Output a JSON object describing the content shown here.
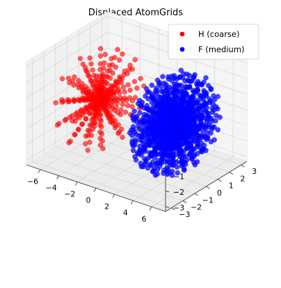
{
  "chart_data": {
    "type": "scatter",
    "projection": "3d",
    "title": "Displaced AtomGrids",
    "xlabel": "",
    "ylabel": "",
    "zlabel": "",
    "xlim": [
      -7.5,
      7.5
    ],
    "ylim": [
      -3.5,
      3.5
    ],
    "zlim": [
      -3.3,
      3.3
    ],
    "x_ticks": [
      -6,
      -4,
      -2,
      0,
      2,
      4,
      6
    ],
    "y_ticks": [
      -3,
      -2,
      -1,
      0,
      1,
      2,
      3
    ],
    "z_ticks": [
      -3,
      -2,
      -1,
      0,
      1,
      2,
      3
    ],
    "x_tick_labels": [
      "−6",
      "−4",
      "−2",
      "0",
      "2",
      "4",
      "6"
    ],
    "y_tick_labels": [
      "−3",
      "−2",
      "−1",
      "0",
      "1",
      "2",
      "3"
    ],
    "z_tick_labels": [
      "−3",
      "−2",
      "−1",
      "0",
      "1",
      "2",
      "3"
    ],
    "grid": true,
    "legend": "top-right",
    "series": [
      {
        "name": "H (coarse)",
        "color": "#ff0000",
        "marker": "circle",
        "center": [
          -4,
          0,
          0
        ],
        "radius": 3,
        "structure": "coarse radial grid of points along a small number of rays"
      },
      {
        "name": "F (medium)",
        "color": "#0000ff",
        "marker": "circle",
        "center": [
          4,
          0,
          0
        ],
        "radius": 3,
        "structure": "dense radial grid of points along many rays"
      }
    ]
  }
}
